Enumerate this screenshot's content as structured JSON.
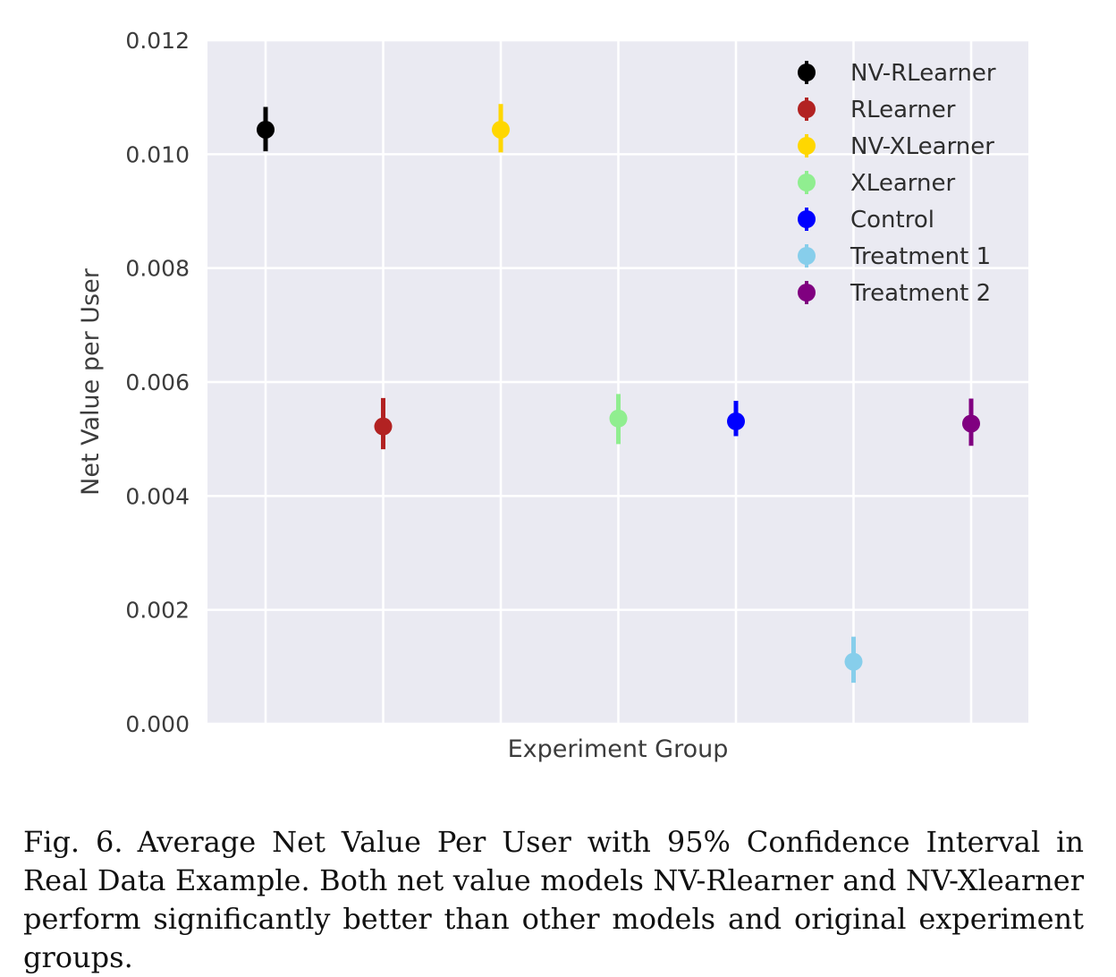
{
  "chart_data": {
    "type": "scatter",
    "subtype": "point-with-error-bars",
    "xlabel": "Experiment Group",
    "ylabel": "Net Value per User",
    "ylim": [
      0.0,
      0.012
    ],
    "yticks": [
      "0.000",
      "0.002",
      "0.004",
      "0.006",
      "0.008",
      "0.010",
      "0.012"
    ],
    "grid": true,
    "background": "#eaeaf2",
    "legend_position": "top-right",
    "series": [
      {
        "name": "NV-RLearner",
        "value": 0.01043,
        "lower": 0.01005,
        "upper": 0.01083,
        "color": "#000000"
      },
      {
        "name": "RLearner",
        "value": 0.00522,
        "lower": 0.00482,
        "upper": 0.00572,
        "color": "#b22222"
      },
      {
        "name": "NV-XLearner",
        "value": 0.01043,
        "lower": 0.01003,
        "upper": 0.01088,
        "color": "#ffd700"
      },
      {
        "name": "XLearner",
        "value": 0.00536,
        "lower": 0.00491,
        "upper": 0.00579,
        "color": "#90ee90"
      },
      {
        "name": "Control",
        "value": 0.00531,
        "lower": 0.00505,
        "upper": 0.00567,
        "color": "#0000ff"
      },
      {
        "name": "Treatment 1",
        "value": 0.00109,
        "lower": 0.00072,
        "upper": 0.00153,
        "color": "#87ceeb"
      },
      {
        "name": "Treatment 2",
        "value": 0.00527,
        "lower": 0.00488,
        "upper": 0.00571,
        "color": "#800080"
      }
    ]
  },
  "caption": {
    "fig_no": "Fig. 6.",
    "text": "Average Net Value Per User with 95% Confidence Interval in Real Data Example. Both net value models NV-Rlearner and NV-Xlearner perform significantly better than other models and original experiment groups."
  }
}
